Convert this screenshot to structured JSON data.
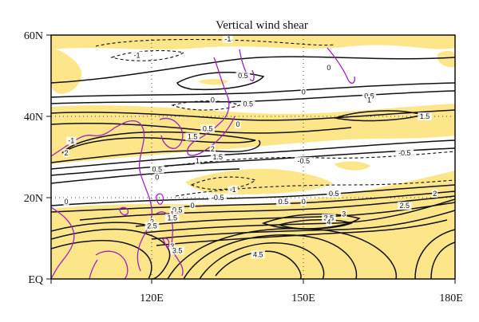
{
  "map": {
    "title": "Vertical wind shear",
    "lat_labels": [
      "60N",
      "40N",
      "20N",
      "EQ"
    ],
    "lon_labels": [
      "120E",
      "150E",
      "180E"
    ],
    "lat_range": [
      0,
      60
    ],
    "lon_range": [
      100,
      180
    ],
    "colors": {
      "shading": "#fde68a",
      "contour": "#111111",
      "coastline": "#a020c0",
      "frame": "#111111"
    },
    "contour_labels": [
      {
        "text": "-1",
        "lon": 104,
        "lat": 34
      },
      {
        "text": "2",
        "lon": 103,
        "lat": 31
      },
      {
        "text": "0",
        "lon": 103,
        "lat": 19
      },
      {
        "text": "-1",
        "lon": 117,
        "lat": 55
      },
      {
        "text": "-1",
        "lon": 135,
        "lat": 59
      },
      {
        "text": "0.5",
        "lon": 138,
        "lat": 50
      },
      {
        "text": "0",
        "lon": 155,
        "lat": 52
      },
      {
        "text": "0",
        "lon": 150,
        "lat": 46
      },
      {
        "text": "0.5",
        "lon": 163,
        "lat": 45
      },
      {
        "text": "1",
        "lon": 163,
        "lat": 44
      },
      {
        "text": "0",
        "lon": 132,
        "lat": 44
      },
      {
        "text": "0.5",
        "lon": 139,
        "lat": 43
      },
      {
        "text": "1.5",
        "lon": 174,
        "lat": 40
      },
      {
        "text": "0",
        "lon": 137,
        "lat": 38
      },
      {
        "text": "0.5",
        "lon": 131,
        "lat": 37
      },
      {
        "text": "1.5",
        "lon": 128,
        "lat": 35
      },
      {
        "text": "2",
        "lon": 132,
        "lat": 32
      },
      {
        "text": "1.5",
        "lon": 133,
        "lat": 30
      },
      {
        "text": "1",
        "lon": 129,
        "lat": 29
      },
      {
        "text": "0.5",
        "lon": 121,
        "lat": 27
      },
      {
        "text": "0",
        "lon": 121,
        "lat": 25
      },
      {
        "text": "-0.5",
        "lon": 150,
        "lat": 29
      },
      {
        "text": "-0.5",
        "lon": 170,
        "lat": 31
      },
      {
        "text": "-1",
        "lon": 136,
        "lat": 22
      },
      {
        "text": "-0.5",
        "lon": 133,
        "lat": 20
      },
      {
        "text": "0.5",
        "lon": 156,
        "lat": 21
      },
      {
        "text": "0",
        "lon": 150,
        "lat": 19
      },
      {
        "text": "0.5",
        "lon": 146,
        "lat": 19
      },
      {
        "text": "0",
        "lon": 128,
        "lat": 18
      },
      {
        "text": "0.5",
        "lon": 125,
        "lat": 17
      },
      {
        "text": "1",
        "lon": 124,
        "lat": 16
      },
      {
        "text": "1.5",
        "lon": 124,
        "lat": 15
      },
      {
        "text": "2",
        "lon": 176,
        "lat": 21
      },
      {
        "text": "2.5",
        "lon": 170,
        "lat": 18
      },
      {
        "text": "3",
        "lon": 158,
        "lat": 16
      },
      {
        "text": "3.5",
        "lon": 155,
        "lat": 15
      },
      {
        "text": "4",
        "lon": 155,
        "lat": 14
      },
      {
        "text": "2",
        "lon": 120,
        "lat": 14
      },
      {
        "text": "2.5",
        "lon": 120,
        "lat": 13
      },
      {
        "text": "3",
        "lon": 124,
        "lat": 8
      },
      {
        "text": "3.5",
        "lon": 125,
        "lat": 7
      },
      {
        "text": "4.5",
        "lon": 141,
        "lat": 6
      }
    ]
  }
}
